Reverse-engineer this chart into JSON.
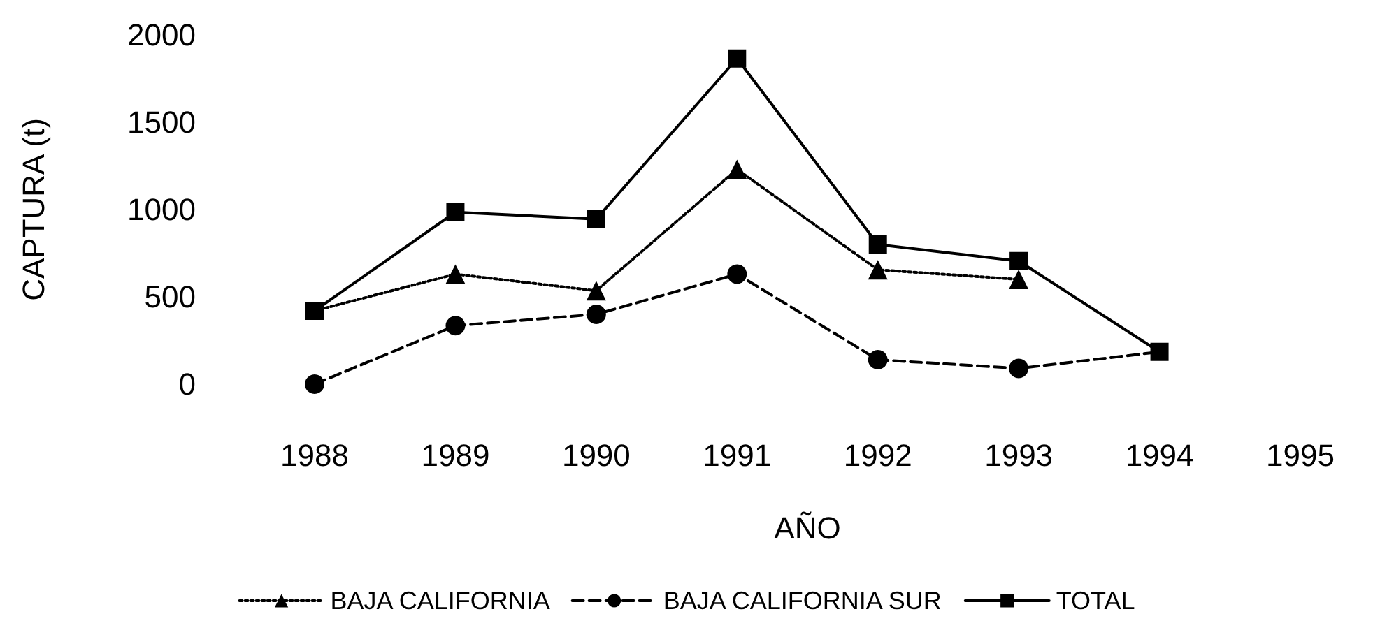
{
  "chart_data": {
    "type": "line",
    "xlabel": "AÑO",
    "ylabel": "CAPTURA (t)",
    "categories": [
      "1988",
      "1989",
      "1990",
      "1991",
      "1992",
      "1993",
      "1994",
      "1995"
    ],
    "series": [
      {
        "name": "BAJA CALIFORNIA",
        "color": "#000000",
        "marker": "triangle",
        "line_style": "dotted",
        "values": [
          420,
          630,
          535,
          1230,
          655,
          600,
          null,
          null
        ]
      },
      {
        "name": "BAJA CALIFORNIA SUR",
        "color": "#000000",
        "marker": "circle",
        "line_style": "dashed",
        "values": [
          0,
          335,
          400,
          630,
          140,
          90,
          185,
          null
        ]
      },
      {
        "name": "TOTAL",
        "color": "#000000",
        "marker": "square",
        "line_style": "solid",
        "values": [
          420,
          985,
          945,
          1865,
          800,
          705,
          185,
          null
        ]
      }
    ],
    "ylim": [
      0,
      2000
    ],
    "yticks": [
      0,
      500,
      1000,
      1500,
      2000
    ],
    "grid": false,
    "legend": "bottom"
  }
}
